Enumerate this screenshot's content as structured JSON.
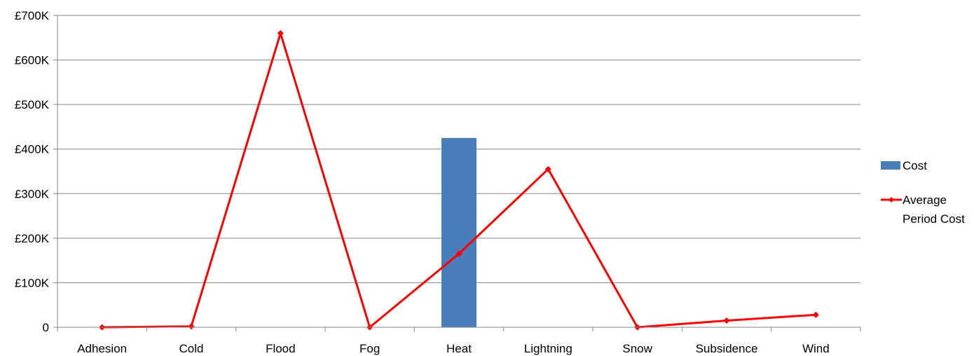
{
  "chart_data": {
    "type": "bar",
    "categories": [
      "Adhesion",
      "Cold",
      "Flood",
      "Fog",
      "Heat",
      "Lightning",
      "Snow",
      "Subsidence",
      "Wind"
    ],
    "y_ticks": [
      "0",
      "£100K",
      "£200K",
      "£300K",
      "£400K",
      "£500K",
      "£600K",
      "£700K"
    ],
    "ylim": [
      0,
      700000
    ],
    "grid": true,
    "legend_position": "right",
    "series": [
      {
        "name": "Cost",
        "type": "bar",
        "color": "#4a7ebb",
        "values": [
          0,
          0,
          0,
          0,
          425000,
          0,
          0,
          0,
          0
        ]
      },
      {
        "name": "Average Period Cost",
        "legend_lines": [
          "Average",
          "Period Cost"
        ],
        "type": "line",
        "color": "#ff0000",
        "values": [
          0,
          2000,
          660000,
          0,
          165000,
          355000,
          0,
          15000,
          28000
        ]
      }
    ]
  }
}
